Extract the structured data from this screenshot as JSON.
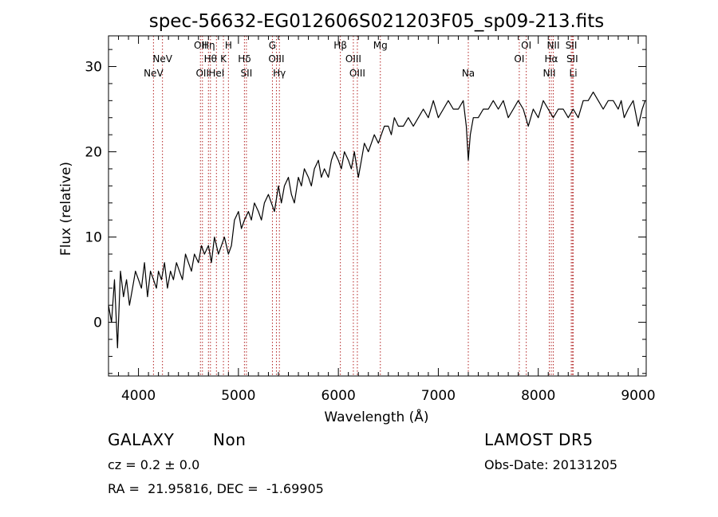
{
  "chart_data": {
    "type": "line",
    "title": "spec-56632-EG012606S021203F05_sp09-213.fits",
    "xlabel": "Wavelength (Å)",
    "ylabel": "Flux (relative)",
    "xlim": [
      3700,
      9080
    ],
    "ylim": [
      -6.3,
      33.6
    ],
    "xticks": [
      4000,
      5000,
      6000,
      7000,
      8000,
      9000
    ],
    "yticks": [
      0,
      10,
      20,
      30
    ],
    "line_color": "#000000",
    "marker_color": "#b22222",
    "series": [
      {
        "x": [
          3700,
          3730,
          3760,
          3790,
          3820,
          3850,
          3880,
          3910,
          3940,
          3970,
          4000,
          4030,
          4060,
          4090,
          4120,
          4150,
          4180,
          4200,
          4230,
          4260,
          4290,
          4320,
          4350,
          4380,
          4410,
          4440,
          4470,
          4500,
          4530,
          4560,
          4600,
          4630,
          4660,
          4700,
          4730,
          4760,
          4800,
          4830,
          4860,
          4900,
          4930,
          4960,
          5000,
          5030,
          5060,
          5100,
          5130,
          5160,
          5200,
          5230,
          5260,
          5300,
          5330,
          5360,
          5400,
          5430,
          5460,
          5500,
          5530,
          5560,
          5600,
          5630,
          5660,
          5700,
          5730,
          5760,
          5800,
          5830,
          5860,
          5900,
          5930,
          5960,
          6000,
          6030,
          6060,
          6100,
          6130,
          6160,
          6200,
          6230,
          6260,
          6300,
          6330,
          6360,
          6400,
          6430,
          6460,
          6500,
          6530,
          6560,
          6600,
          6650,
          6700,
          6750,
          6800,
          6850,
          6900,
          6950,
          7000,
          7050,
          7100,
          7150,
          7200,
          7250,
          7280,
          7300,
          7320,
          7350,
          7400,
          7450,
          7500,
          7550,
          7600,
          7650,
          7700,
          7750,
          7800,
          7850,
          7900,
          7950,
          8000,
          8050,
          8100,
          8150,
          8200,
          8250,
          8300,
          8350,
          8400,
          8450,
          8500,
          8550,
          8600,
          8650,
          8700,
          8750,
          8800,
          8830,
          8860,
          8900,
          8950,
          9000,
          9040,
          9070
        ],
        "y": [
          2,
          0,
          5,
          -3,
          6,
          3,
          5,
          2,
          4,
          6,
          5,
          4,
          7,
          3,
          6,
          5,
          4,
          6,
          5,
          7,
          4,
          6,
          5,
          7,
          6,
          5,
          8,
          7,
          6,
          8,
          7,
          9,
          8,
          9,
          7,
          10,
          8,
          9,
          10,
          8,
          9,
          12,
          13,
          11,
          12,
          13,
          12,
          14,
          13,
          12,
          14,
          15,
          14,
          13,
          16,
          14,
          16,
          17,
          15,
          14,
          17,
          16,
          18,
          17,
          16,
          18,
          19,
          17,
          18,
          17,
          19,
          20,
          19,
          18,
          20,
          19,
          18,
          20,
          17,
          19,
          21,
          20,
          21,
          22,
          21,
          22,
          23,
          23,
          22,
          24,
          23,
          23,
          24,
          23,
          24,
          25,
          24,
          26,
          24,
          25,
          26,
          25,
          25,
          26,
          23,
          19,
          22,
          24,
          24,
          25,
          25,
          26,
          25,
          26,
          24,
          25,
          26,
          25,
          23,
          25,
          24,
          26,
          25,
          24,
          25,
          25,
          24,
          25,
          24,
          26,
          26,
          27,
          26,
          25,
          26,
          26,
          25,
          26,
          24,
          25,
          26,
          23,
          25,
          26
        ]
      }
    ],
    "features": [
      {
        "name": "NeV",
        "x": 4150,
        "row": 3
      },
      {
        "name": "NeV",
        "x": 4240,
        "row": 2
      },
      {
        "name": "OII",
        "x": 4620,
        "row": 1
      },
      {
        "name": "OII",
        "x": 4640,
        "row": 3
      },
      {
        "name": "Hη",
        "x": 4700,
        "row": 1
      },
      {
        "name": "Hθ",
        "x": 4720,
        "row": 2
      },
      {
        "name": "HeI",
        "x": 4780,
        "row": 3
      },
      {
        "name": "K",
        "x": 4850,
        "row": 2
      },
      {
        "name": "H",
        "x": 4900,
        "row": 1
      },
      {
        "name": "Hδ",
        "x": 5060,
        "row": 2
      },
      {
        "name": "SII",
        "x": 5080,
        "row": 3
      },
      {
        "name": "G",
        "x": 5340,
        "row": 1
      },
      {
        "name": "OIII",
        "x": 5380,
        "row": 2
      },
      {
        "name": "Hγ",
        "x": 5410,
        "row": 3
      },
      {
        "name": "Hβ",
        "x": 6020,
        "row": 1
      },
      {
        "name": "OIII",
        "x": 6150,
        "row": 2
      },
      {
        "name": "OIII",
        "x": 6190,
        "row": 3
      },
      {
        "name": "Mg",
        "x": 6420,
        "row": 1
      },
      {
        "name": "Na",
        "x": 7300,
        "row": 3
      },
      {
        "name": "OI",
        "x": 7810,
        "row": 2
      },
      {
        "name": "OI",
        "x": 7880,
        "row": 1
      },
      {
        "name": "NII",
        "x": 8110,
        "row": 3
      },
      {
        "name": "Hα",
        "x": 8130,
        "row": 2
      },
      {
        "name": "NII",
        "x": 8150,
        "row": 1
      },
      {
        "name": "SII",
        "x": 8330,
        "row": 1
      },
      {
        "name": "SII",
        "x": 8340,
        "row": 2
      },
      {
        "name": "Li",
        "x": 8350,
        "row": 3
      }
    ]
  },
  "info": {
    "object_class": "GALAXY",
    "subclass": "Non",
    "survey": "LAMOST DR5",
    "redshift": "cz = 0.2 ± 0.0",
    "obs_date": "Obs-Date: 20131205",
    "coords": "RA =  21.95816, DEC =  -1.69905"
  }
}
